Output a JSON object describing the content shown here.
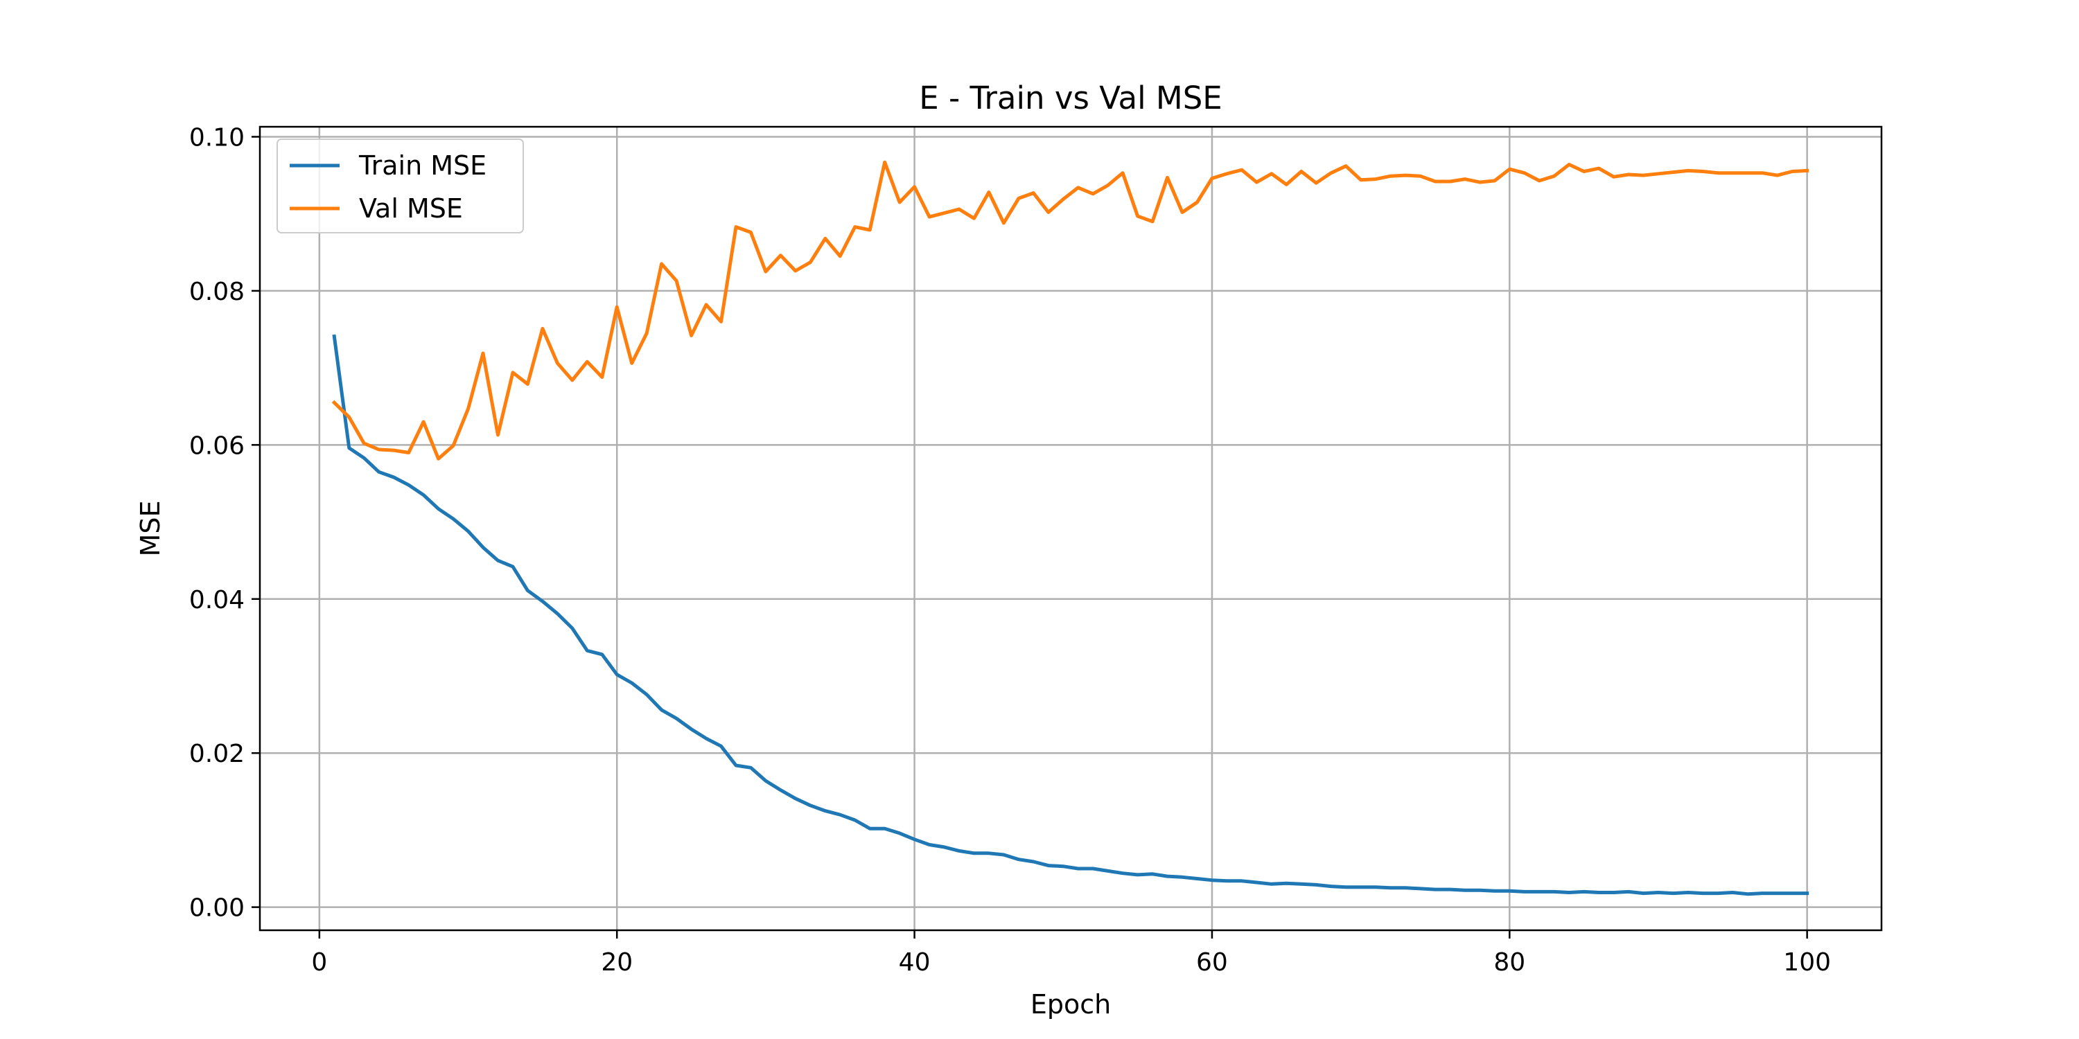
{
  "chart_data": {
    "type": "line",
    "title": "E - Train vs Val MSE",
    "xlabel": "Epoch",
    "ylabel": "MSE",
    "xlim": [
      -4,
      105
    ],
    "ylim": [
      -0.003,
      0.1013
    ],
    "xticks": [
      0,
      20,
      40,
      60,
      80,
      100
    ],
    "xtick_labels": [
      "0",
      "20",
      "40",
      "60",
      "80",
      "100"
    ],
    "yticks": [
      0.0,
      0.02,
      0.04,
      0.06,
      0.08,
      0.1
    ],
    "ytick_labels": [
      "0.00",
      "0.02",
      "0.04",
      "0.06",
      "0.08",
      "0.10"
    ],
    "grid": true,
    "legend_position": "upper-left",
    "x": [
      1,
      2,
      3,
      4,
      5,
      6,
      7,
      8,
      9,
      10,
      11,
      12,
      13,
      14,
      15,
      16,
      17,
      18,
      19,
      20,
      21,
      22,
      23,
      24,
      25,
      26,
      27,
      28,
      29,
      30,
      31,
      32,
      33,
      34,
      35,
      36,
      37,
      38,
      39,
      40,
      41,
      42,
      43,
      44,
      45,
      46,
      47,
      48,
      49,
      50,
      51,
      52,
      53,
      54,
      55,
      56,
      57,
      58,
      59,
      60,
      61,
      62,
      63,
      64,
      65,
      66,
      67,
      68,
      69,
      70,
      71,
      72,
      73,
      74,
      75,
      76,
      77,
      78,
      79,
      80,
      81,
      82,
      83,
      84,
      85,
      86,
      87,
      88,
      89,
      90,
      91,
      92,
      93,
      94,
      95,
      96,
      97,
      98,
      99,
      100
    ],
    "series": [
      {
        "name": "Train MSE",
        "color": "#1f77b4",
        "values": [
          0.0741,
          0.0596,
          0.0583,
          0.0565,
          0.0558,
          0.0548,
          0.0535,
          0.0517,
          0.0504,
          0.0488,
          0.0467,
          0.045,
          0.0442,
          0.0411,
          0.0397,
          0.0381,
          0.0362,
          0.0333,
          0.0328,
          0.0302,
          0.0291,
          0.0276,
          0.0256,
          0.0245,
          0.0231,
          0.0219,
          0.0209,
          0.0184,
          0.0181,
          0.0164,
          0.0152,
          0.0141,
          0.0132,
          0.0125,
          0.012,
          0.0113,
          0.0102,
          0.0102,
          0.0096,
          0.0088,
          0.0081,
          0.0078,
          0.0073,
          0.007,
          0.007,
          0.0068,
          0.0062,
          0.0059,
          0.0054,
          0.0053,
          0.005,
          0.005,
          0.0047,
          0.0044,
          0.0042,
          0.0043,
          0.004,
          0.0039,
          0.0037,
          0.0035,
          0.0034,
          0.0034,
          0.0032,
          0.003,
          0.0031,
          0.003,
          0.0029,
          0.0027,
          0.0026,
          0.0026,
          0.0026,
          0.0025,
          0.0025,
          0.0024,
          0.0023,
          0.0023,
          0.0022,
          0.0022,
          0.0021,
          0.0021,
          0.002,
          0.002,
          0.002,
          0.0019,
          0.002,
          0.0019,
          0.0019,
          0.002,
          0.0018,
          0.0019,
          0.0018,
          0.0019,
          0.0018,
          0.0018,
          0.0019,
          0.0017,
          0.0018,
          0.0018,
          0.0018,
          0.0018
        ]
      },
      {
        "name": "Val MSE",
        "color": "#ff7f0e",
        "values": [
          0.0655,
          0.0636,
          0.0602,
          0.0594,
          0.0593,
          0.059,
          0.063,
          0.0582,
          0.0599,
          0.0647,
          0.0719,
          0.0613,
          0.0694,
          0.0679,
          0.0751,
          0.0706,
          0.0684,
          0.0708,
          0.0688,
          0.0779,
          0.0706,
          0.0745,
          0.0835,
          0.0813,
          0.0742,
          0.0782,
          0.076,
          0.0883,
          0.0876,
          0.0825,
          0.0846,
          0.0826,
          0.0837,
          0.0868,
          0.0845,
          0.0883,
          0.0879,
          0.0967,
          0.0915,
          0.0935,
          0.0896,
          0.0901,
          0.0906,
          0.0894,
          0.0928,
          0.0888,
          0.092,
          0.0927,
          0.0902,
          0.0919,
          0.0934,
          0.0926,
          0.0937,
          0.0953,
          0.0897,
          0.089,
          0.0947,
          0.0902,
          0.0915,
          0.0946,
          0.0952,
          0.0957,
          0.0941,
          0.0952,
          0.0938,
          0.0955,
          0.094,
          0.0953,
          0.0962,
          0.0944,
          0.0945,
          0.0949,
          0.095,
          0.0949,
          0.0942,
          0.0942,
          0.0945,
          0.0941,
          0.0943,
          0.0958,
          0.0953,
          0.0943,
          0.0949,
          0.0964,
          0.0955,
          0.0959,
          0.0948,
          0.0951,
          0.095,
          0.0952,
          0.0954,
          0.0956,
          0.0955,
          0.0953,
          0.0953,
          0.0953,
          0.0953,
          0.095,
          0.0955,
          0.0956
        ]
      }
    ]
  }
}
